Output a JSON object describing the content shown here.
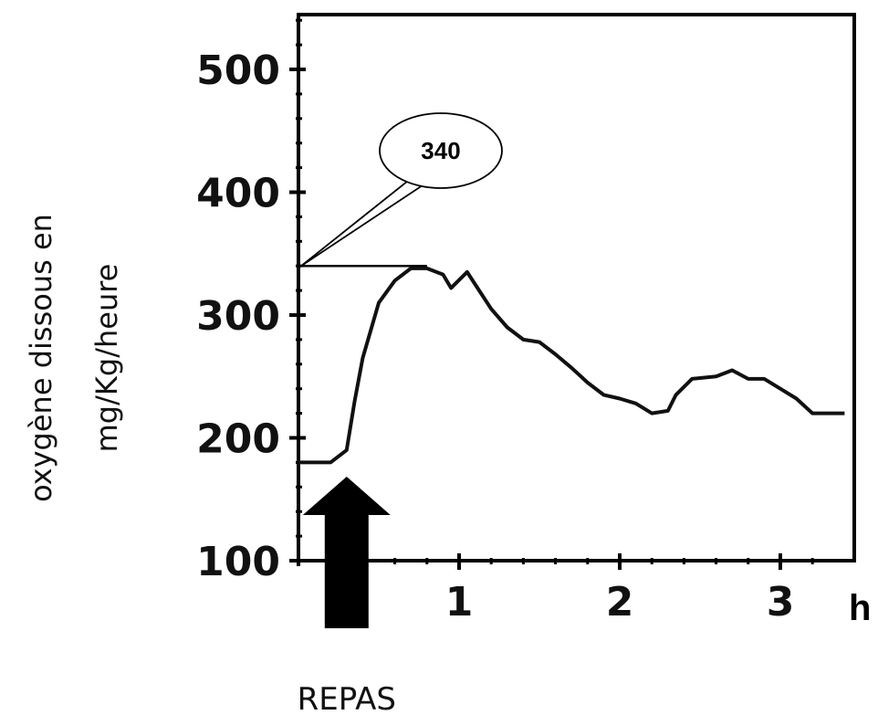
{
  "chart_data": {
    "type": "line",
    "xlabel": "h",
    "ylabel_line1": "oxygène dissous en",
    "ylabel_line2": "mg/Kg/heure",
    "xlim": [
      0,
      3.4
    ],
    "ylim": [
      100,
      550
    ],
    "x_ticks": [
      1,
      2,
      3
    ],
    "y_ticks": [
      100,
      200,
      300,
      400,
      500
    ],
    "grid": false,
    "series": [
      {
        "x": [
          0,
          0.1,
          0.2,
          0.3,
          0.35,
          0.4,
          0.5,
          0.6,
          0.7,
          0.8,
          0.9,
          0.95,
          1.05,
          1.1,
          1.2,
          1.3,
          1.4,
          1.5,
          1.6,
          1.7,
          1.8,
          1.9,
          2.0,
          2.1,
          2.2,
          2.3,
          2.35,
          2.45,
          2.6,
          2.7,
          2.8,
          2.9,
          3.0,
          3.1,
          3.2,
          3.4
        ],
        "y": [
          180,
          180,
          180,
          190,
          230,
          265,
          310,
          328,
          338,
          338,
          333,
          322,
          335,
          325,
          305,
          290,
          280,
          278,
          268,
          257,
          245,
          235,
          232,
          228,
          220,
          222,
          235,
          248,
          250,
          255,
          248,
          248,
          240,
          232,
          220,
          220
        ]
      }
    ],
    "annotations": {
      "callout_value": "340",
      "event_label": "REPAS",
      "event_x": 0.3
    }
  },
  "colors": {
    "line": "#111111",
    "background": "#ffffff"
  }
}
